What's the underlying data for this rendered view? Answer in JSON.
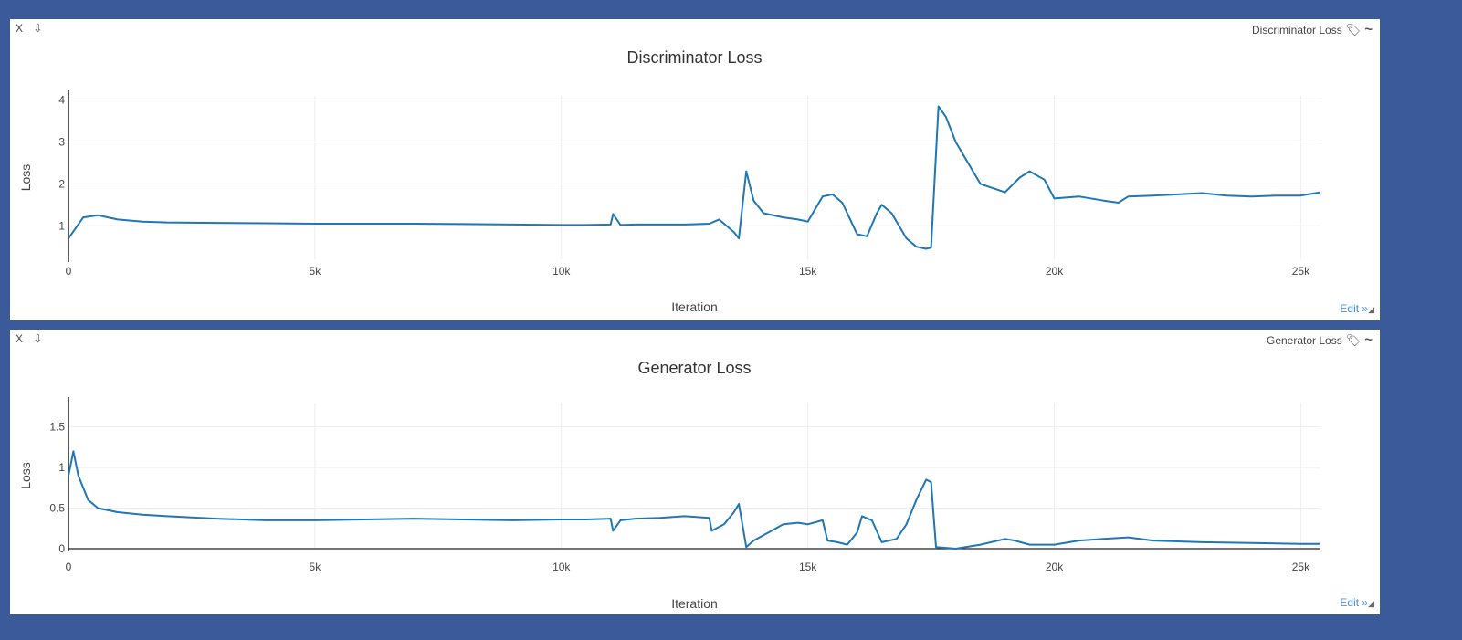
{
  "window_controls": {
    "close": "X",
    "download": "⇩"
  },
  "panels": [
    {
      "label": "Discriminator Loss",
      "edit": "Edit »",
      "tag_icon": "tag-icon",
      "smooth_icon": "tilde-icon"
    },
    {
      "label": "Generator Loss",
      "edit": "Edit »",
      "tag_icon": "tag-icon",
      "smooth_icon": "tilde-icon"
    }
  ],
  "colors": {
    "background": "#3a5a99",
    "line": "#1f77b4",
    "grid": "#eeeeee"
  },
  "chart_data": [
    {
      "type": "line",
      "title": "Discriminator Loss",
      "xlabel": "Iteration",
      "ylabel": "Loss",
      "xlim": [
        0,
        25400
      ],
      "ylim": [
        0.2,
        4.1
      ],
      "xticks": [
        0,
        5000,
        10000,
        15000,
        20000,
        25000
      ],
      "xtick_labels": [
        "0",
        "5k",
        "10k",
        "15k",
        "20k",
        "25k"
      ],
      "yticks": [
        1,
        2,
        3,
        4
      ],
      "ytick_labels": [
        "1",
        "2",
        "3",
        "4"
      ],
      "grid": true,
      "series": [
        {
          "x": [
            0,
            300,
            600,
            1000,
            1500,
            2000,
            3000,
            4000,
            5000,
            6000,
            7000,
            8000,
            9000,
            10000,
            10500,
            11000,
            11050,
            11200,
            11500,
            12000,
            12500,
            13000,
            13200,
            13500,
            13600,
            13750,
            13900,
            14100,
            14500,
            14800,
            15000,
            15300,
            15500,
            15700,
            16000,
            16200,
            16400,
            16500,
            16700,
            17000,
            17200,
            17400,
            17500,
            17650,
            17800,
            18000,
            18500,
            19000,
            19300,
            19500,
            19800,
            20000,
            20500,
            21000,
            21300,
            21500,
            22000,
            22500,
            23000,
            23500,
            24000,
            24500,
            25000,
            25400
          ],
          "y": [
            0.7,
            1.2,
            1.25,
            1.15,
            1.1,
            1.08,
            1.07,
            1.06,
            1.05,
            1.05,
            1.05,
            1.04,
            1.03,
            1.02,
            1.02,
            1.03,
            1.28,
            1.02,
            1.03,
            1.03,
            1.03,
            1.05,
            1.15,
            0.85,
            0.7,
            2.3,
            1.6,
            1.3,
            1.2,
            1.15,
            1.1,
            1.7,
            1.75,
            1.55,
            0.8,
            0.75,
            1.3,
            1.5,
            1.3,
            0.7,
            0.5,
            0.45,
            0.48,
            3.85,
            3.6,
            3.0,
            2.0,
            1.8,
            2.15,
            2.3,
            2.1,
            1.65,
            1.7,
            1.6,
            1.55,
            1.7,
            1.72,
            1.75,
            1.78,
            1.72,
            1.7,
            1.72,
            1.72,
            1.8
          ]
        }
      ]
    },
    {
      "type": "line",
      "title": "Generator Loss",
      "xlabel": "Iteration",
      "ylabel": "Loss",
      "xlim": [
        0,
        25400
      ],
      "ylim": [
        0,
        1.8
      ],
      "xticks": [
        0,
        5000,
        10000,
        15000,
        20000,
        25000
      ],
      "xtick_labels": [
        "0",
        "5k",
        "10k",
        "15k",
        "20k",
        "25k"
      ],
      "yticks": [
        0,
        0.5,
        1,
        1.5
      ],
      "ytick_labels": [
        "0",
        "0.5",
        "1",
        "1.5"
      ],
      "grid": true,
      "series": [
        {
          "x": [
            0,
            100,
            200,
            400,
            600,
            1000,
            1500,
            2000,
            3000,
            4000,
            5000,
            6000,
            7000,
            8000,
            9000,
            10000,
            10500,
            11000,
            11050,
            11200,
            11500,
            12000,
            12500,
            13000,
            13050,
            13300,
            13500,
            13600,
            13700,
            13750,
            13900,
            14200,
            14500,
            14800,
            15000,
            15300,
            15400,
            15600,
            15800,
            16000,
            16100,
            16300,
            16500,
            16800,
            17000,
            17200,
            17400,
            17500,
            17600,
            18000,
            18500,
            19000,
            19200,
            19500,
            20000,
            20500,
            21000,
            21500,
            22000,
            23000,
            24000,
            25000,
            25400
          ],
          "y": [
            0.9,
            1.2,
            0.9,
            0.6,
            0.5,
            0.45,
            0.42,
            0.4,
            0.37,
            0.35,
            0.35,
            0.36,
            0.37,
            0.36,
            0.35,
            0.36,
            0.36,
            0.37,
            0.22,
            0.35,
            0.37,
            0.38,
            0.4,
            0.38,
            0.22,
            0.3,
            0.45,
            0.55,
            0.2,
            0.02,
            0.1,
            0.2,
            0.3,
            0.32,
            0.3,
            0.35,
            0.1,
            0.08,
            0.05,
            0.2,
            0.4,
            0.35,
            0.08,
            0.12,
            0.3,
            0.6,
            0.85,
            0.82,
            0.02,
            0.0,
            0.05,
            0.12,
            0.1,
            0.05,
            0.05,
            0.1,
            0.12,
            0.14,
            0.1,
            0.08,
            0.07,
            0.06,
            0.06
          ]
        }
      ]
    }
  ]
}
